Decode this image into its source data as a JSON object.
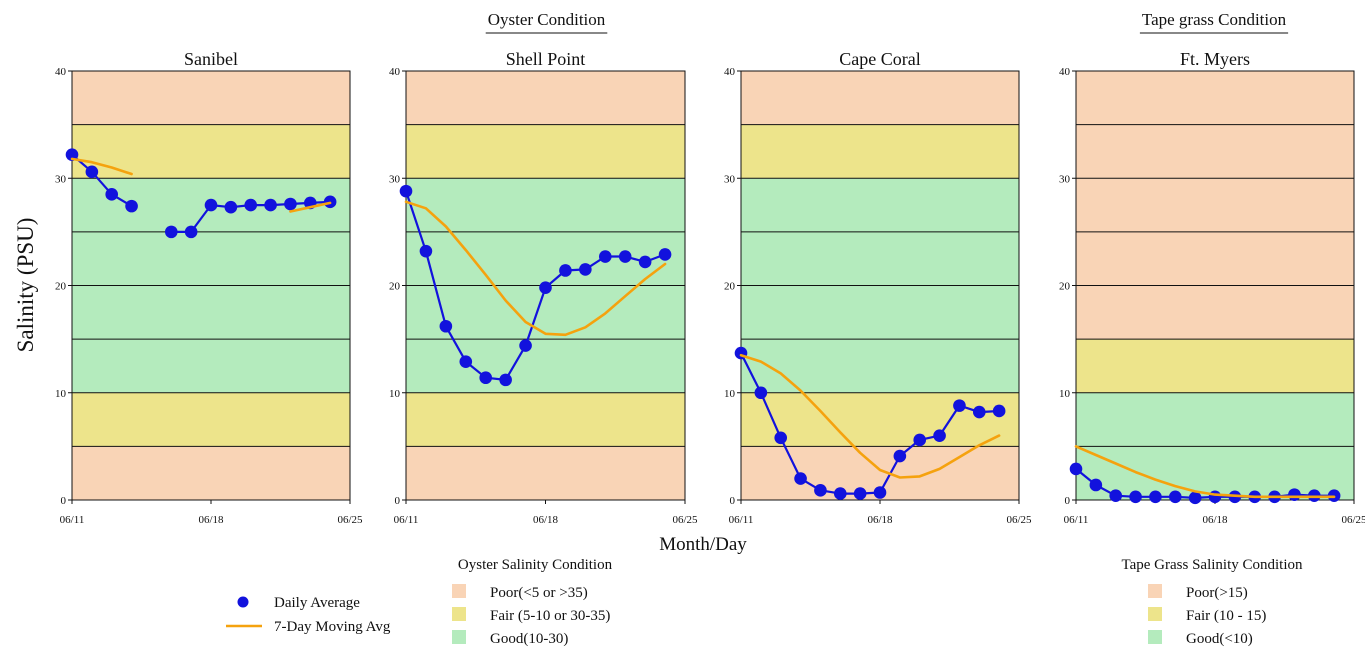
{
  "chart_data": {
    "type": "line",
    "ylabel": "Salinity (PSU)",
    "xlabel": "Month/Day",
    "ylim": [
      0,
      40
    ],
    "yticks": [
      0,
      10,
      20,
      30,
      40
    ],
    "xlim": [
      "06/11",
      "06/25"
    ],
    "xticks": [
      "06/11",
      "06/18",
      "06/25"
    ],
    "grid": "horizontal lines every 5",
    "groups": [
      {
        "title": "Oyster Condition",
        "panels": [
          "Sanibel",
          "Shell Point",
          "Cape Coral"
        ]
      },
      {
        "title": "Tape grass Condition",
        "panels": [
          "Ft. Myers"
        ]
      }
    ],
    "panels": [
      {
        "title": "Sanibel",
        "band_scheme": "oyster",
        "series": [
          {
            "name": "Daily Average",
            "kind": "points",
            "segments": [
              [
                [
                  "06/11",
                  32.2
                ],
                [
                  "06/12",
                  30.6
                ],
                [
                  "06/13",
                  28.5
                ],
                [
                  "06/14",
                  27.4
                ]
              ],
              [
                [
                  "06/16",
                  25.0
                ],
                [
                  "06/17",
                  25.0
                ],
                [
                  "06/18",
                  27.5
                ],
                [
                  "06/19",
                  27.3
                ],
                [
                  "06/20",
                  27.5
                ],
                [
                  "06/21",
                  27.5
                ],
                [
                  "06/22",
                  27.6
                ],
                [
                  "06/23",
                  27.7
                ],
                [
                  "06/24",
                  27.8
                ]
              ]
            ]
          },
          {
            "name": "7-Day Moving Avg",
            "kind": "line",
            "segments": [
              [
                [
                  "06/11",
                  31.8
                ],
                [
                  "06/12",
                  31.5
                ],
                [
                  "06/13",
                  31.0
                ],
                [
                  "06/14",
                  30.4
                ]
              ],
              [
                [
                  "06/22",
                  26.9
                ],
                [
                  "06/23",
                  27.3
                ],
                [
                  "06/24",
                  27.7
                ]
              ]
            ]
          }
        ]
      },
      {
        "title": "Shell Point",
        "band_scheme": "oyster",
        "series": [
          {
            "name": "Daily Average",
            "kind": "points",
            "segments": [
              [
                [
                  "06/11",
                  28.8
                ],
                [
                  "06/12",
                  23.2
                ],
                [
                  "06/13",
                  16.2
                ],
                [
                  "06/14",
                  12.9
                ],
                [
                  "06/15",
                  11.4
                ],
                [
                  "06/16",
                  11.2
                ],
                [
                  "06/17",
                  14.4
                ],
                [
                  "06/18",
                  19.8
                ],
                [
                  "06/19",
                  21.4
                ],
                [
                  "06/20",
                  21.5
                ],
                [
                  "06/21",
                  22.7
                ],
                [
                  "06/22",
                  22.7
                ],
                [
                  "06/23",
                  22.2
                ],
                [
                  "06/24",
                  22.9
                ]
              ]
            ]
          },
          {
            "name": "7-Day Moving Avg",
            "kind": "line",
            "segments": [
              [
                [
                  "06/11",
                  27.8
                ],
                [
                  "06/12",
                  27.2
                ],
                [
                  "06/13",
                  25.5
                ],
                [
                  "06/14",
                  23.3
                ],
                [
                  "06/15",
                  21.0
                ],
                [
                  "06/16",
                  18.6
                ],
                [
                  "06/17",
                  16.6
                ],
                [
                  "06/18",
                  15.5
                ],
                [
                  "06/19",
                  15.4
                ],
                [
                  "06/20",
                  16.1
                ],
                [
                  "06/21",
                  17.4
                ],
                [
                  "06/22",
                  19.0
                ],
                [
                  "06/23",
                  20.6
                ],
                [
                  "06/24",
                  22.0
                ]
              ]
            ]
          }
        ]
      },
      {
        "title": "Cape Coral",
        "band_scheme": "oyster",
        "series": [
          {
            "name": "Daily Average",
            "kind": "points",
            "segments": [
              [
                [
                  "06/11",
                  13.7
                ],
                [
                  "06/12",
                  10.0
                ],
                [
                  "06/13",
                  5.8
                ],
                [
                  "06/14",
                  2.0
                ],
                [
                  "06/15",
                  0.9
                ],
                [
                  "06/16",
                  0.6
                ],
                [
                  "06/17",
                  0.6
                ],
                [
                  "06/18",
                  0.7
                ],
                [
                  "06/19",
                  4.1
                ],
                [
                  "06/20",
                  5.6
                ],
                [
                  "06/21",
                  6.0
                ],
                [
                  "06/22",
                  8.8
                ],
                [
                  "06/23",
                  8.2
                ],
                [
                  "06/24",
                  8.3
                ]
              ]
            ]
          },
          {
            "name": "7-Day Moving Avg",
            "kind": "line",
            "segments": [
              [
                [
                  "06/11",
                  13.5
                ],
                [
                  "06/12",
                  12.9
                ],
                [
                  "06/13",
                  11.8
                ],
                [
                  "06/14",
                  10.2
                ],
                [
                  "06/15",
                  8.3
                ],
                [
                  "06/16",
                  6.3
                ],
                [
                  "06/17",
                  4.4
                ],
                [
                  "06/18",
                  2.8
                ],
                [
                  "06/19",
                  2.1
                ],
                [
                  "06/20",
                  2.2
                ],
                [
                  "06/21",
                  2.9
                ],
                [
                  "06/22",
                  4.0
                ],
                [
                  "06/23",
                  5.1
                ],
                [
                  "06/24",
                  6.0
                ]
              ]
            ]
          }
        ]
      },
      {
        "title": "Ft. Myers",
        "band_scheme": "tapegrass",
        "series": [
          {
            "name": "Daily Average",
            "kind": "points",
            "segments": [
              [
                [
                  "06/11",
                  2.9
                ],
                [
                  "06/12",
                  1.4
                ],
                [
                  "06/13",
                  0.4
                ],
                [
                  "06/14",
                  0.3
                ],
                [
                  "06/15",
                  0.3
                ],
                [
                  "06/16",
                  0.3
                ],
                [
                  "06/17",
                  0.2
                ],
                [
                  "06/18",
                  0.3
                ],
                [
                  "06/19",
                  0.3
                ],
                [
                  "06/20",
                  0.3
                ],
                [
                  "06/21",
                  0.3
                ],
                [
                  "06/22",
                  0.5
                ],
                [
                  "06/23",
                  0.4
                ],
                [
                  "06/24",
                  0.4
                ]
              ]
            ]
          },
          {
            "name": "7-Day Moving Avg",
            "kind": "line",
            "segments": [
              [
                [
                  "06/11",
                  5.0
                ],
                [
                  "06/12",
                  4.2
                ],
                [
                  "06/13",
                  3.4
                ],
                [
                  "06/14",
                  2.6
                ],
                [
                  "06/15",
                  1.9
                ],
                [
                  "06/16",
                  1.3
                ],
                [
                  "06/17",
                  0.8
                ],
                [
                  "06/18",
                  0.5
                ],
                [
                  "06/19",
                  0.4
                ],
                [
                  "06/20",
                  0.3
                ],
                [
                  "06/21",
                  0.3
                ],
                [
                  "06/22",
                  0.3
                ],
                [
                  "06/23",
                  0.3
                ],
                [
                  "06/24",
                  0.3
                ]
              ]
            ]
          }
        ]
      }
    ],
    "band_schemes": {
      "oyster": [
        {
          "from": 0,
          "to": 5,
          "condition": "poor"
        },
        {
          "from": 5,
          "to": 10,
          "condition": "fair"
        },
        {
          "from": 10,
          "to": 30,
          "condition": "good"
        },
        {
          "from": 30,
          "to": 35,
          "condition": "fair"
        },
        {
          "from": 35,
          "to": 40,
          "condition": "poor"
        }
      ],
      "tapegrass": [
        {
          "from": 0,
          "to": 10,
          "condition": "good"
        },
        {
          "from": 10,
          "to": 15,
          "condition": "fair"
        },
        {
          "from": 15,
          "to": 40,
          "condition": "poor"
        }
      ]
    },
    "legends": {
      "series": [
        {
          "label": "Daily Average",
          "marker": "dot"
        },
        {
          "label": "7-Day Moving Avg",
          "marker": "line"
        }
      ],
      "oyster": {
        "title": "Oyster Salinity Condition",
        "items": [
          {
            "label": "Poor(<5 or >35)",
            "condition": "poor"
          },
          {
            "label": "Fair (5-10 or 30-35)",
            "condition": "fair"
          },
          {
            "label": "Good(10-30)",
            "condition": "good"
          }
        ]
      },
      "tapegrass": {
        "title": "Tape Grass Salinity Condition",
        "items": [
          {
            "label": "Poor(>15)",
            "condition": "poor"
          },
          {
            "label": "Fair (10 - 15)",
            "condition": "fair"
          },
          {
            "label": "Good(<10)",
            "condition": "good"
          }
        ]
      }
    },
    "colors": {
      "poor": "#f9d4b6",
      "fair": "#ede48b",
      "good": "#b4ebbd",
      "daily": "#1212dd",
      "moving": "#f5a20e",
      "grid": "#111111"
    }
  }
}
